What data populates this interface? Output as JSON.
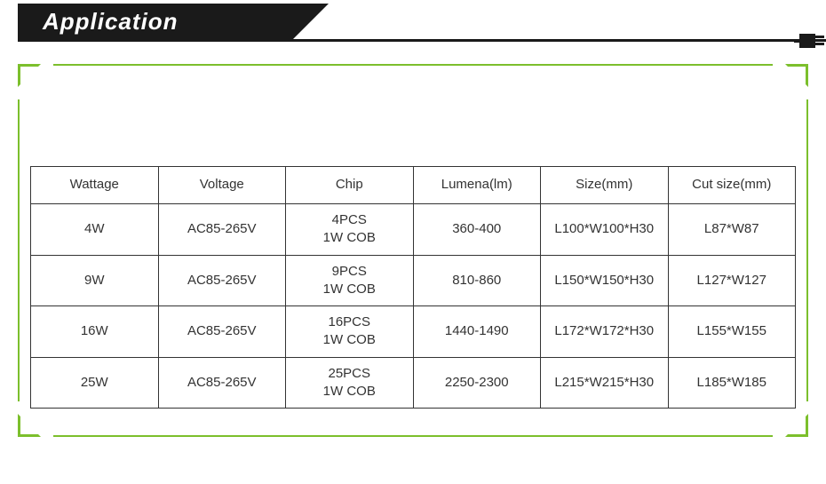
{
  "header": {
    "title": "Application"
  },
  "frame": {
    "border_color": "#7cbf2c"
  },
  "table": {
    "columns": [
      "Wattage",
      "Voltage",
      "Chip",
      "Lumena(lm)",
      "Size(mm)",
      "Cut size(mm)"
    ],
    "rows": [
      {
        "wattage": "4W",
        "voltage": "AC85-265V",
        "chip_line1": "4PCS",
        "chip_line2": "1W COB",
        "lumen": "360-400",
        "size": "L100*W100*H30",
        "cut": "L87*W87"
      },
      {
        "wattage": "9W",
        "voltage": "AC85-265V",
        "chip_line1": "9PCS",
        "chip_line2": "1W COB",
        "lumen": "810-860",
        "size": "L150*W150*H30",
        "cut": "L127*W127"
      },
      {
        "wattage": "16W",
        "voltage": "AC85-265V",
        "chip_line1": "16PCS",
        "chip_line2": "1W COB",
        "lumen": "1440-1490",
        "size": "L172*W172*H30",
        "cut": "L155*W155"
      },
      {
        "wattage": "25W",
        "voltage": "AC85-265V",
        "chip_line1": "25PCS",
        "chip_line2": "1W COB",
        "lumen": "2250-2300",
        "size": "L215*W215*H30",
        "cut": "L185*W185"
      }
    ],
    "border_color": "#333333",
    "text_color": "#333333",
    "font_size": 15
  },
  "colors": {
    "header_bg": "#1a1a1a",
    "header_text": "#ffffff",
    "page_bg": "#ffffff"
  }
}
